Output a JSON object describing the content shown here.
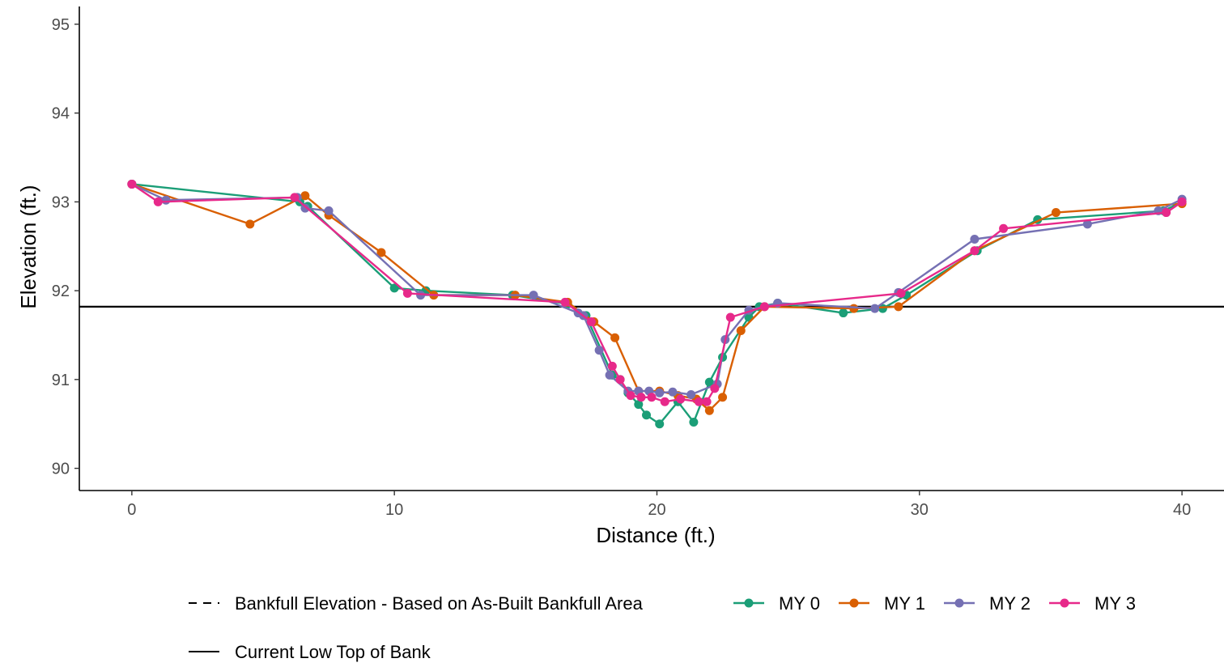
{
  "chart_data": {
    "type": "line",
    "title": "",
    "xlabel": "Distance (ft.)",
    "ylabel": "Elevation (ft.)",
    "xlim": [
      -2,
      41.6
    ],
    "ylim": [
      89.75,
      95.2
    ],
    "xticks": [
      0,
      10,
      20,
      30,
      40
    ],
    "yticks": [
      90,
      91,
      92,
      93,
      94,
      95
    ],
    "grid": false,
    "legend_position": "bottom",
    "reference_lines": [
      {
        "name": "Bankfull Elevation - Based on As-Built Bankfull Area",
        "style": "dashed",
        "y": null
      },
      {
        "name": "Current Low Top of Bank",
        "style": "solid",
        "y": 91.82
      }
    ],
    "series": [
      {
        "name": "MY 0",
        "color": "#1b9e77",
        "points": [
          [
            0,
            93.2
          ],
          [
            6.4,
            93.0
          ],
          [
            6.7,
            92.95
          ],
          [
            10.0,
            92.03
          ],
          [
            11.2,
            92.0
          ],
          [
            14.5,
            91.95
          ],
          [
            16.6,
            91.85
          ],
          [
            17.3,
            91.72
          ],
          [
            18.3,
            91.05
          ],
          [
            18.6,
            91.0
          ],
          [
            18.9,
            90.85
          ],
          [
            19.3,
            90.72
          ],
          [
            19.6,
            90.6
          ],
          [
            20.1,
            90.5
          ],
          [
            20.8,
            90.75
          ],
          [
            21.4,
            90.52
          ],
          [
            22.0,
            90.97
          ],
          [
            22.5,
            91.25
          ],
          [
            23.5,
            91.7
          ],
          [
            23.9,
            91.82
          ],
          [
            24.6,
            91.86
          ],
          [
            27.1,
            91.75
          ],
          [
            28.6,
            91.8
          ],
          [
            29.5,
            91.95
          ],
          [
            32.2,
            92.45
          ],
          [
            34.5,
            92.8
          ],
          [
            39.3,
            92.9
          ],
          [
            40.0,
            93.0
          ]
        ]
      },
      {
        "name": "MY 1",
        "color": "#d95f02",
        "points": [
          [
            0,
            93.2
          ],
          [
            4.5,
            92.75
          ],
          [
            6.6,
            93.07
          ],
          [
            7.5,
            92.85
          ],
          [
            9.5,
            92.43
          ],
          [
            11.5,
            91.95
          ],
          [
            14.6,
            91.95
          ],
          [
            16.6,
            91.87
          ],
          [
            17.6,
            91.65
          ],
          [
            18.4,
            91.47
          ],
          [
            19.3,
            90.87
          ],
          [
            20.1,
            90.87
          ],
          [
            20.8,
            90.82
          ],
          [
            21.5,
            90.78
          ],
          [
            22.0,
            90.65
          ],
          [
            22.5,
            90.8
          ],
          [
            23.2,
            91.55
          ],
          [
            24.1,
            91.82
          ],
          [
            27.5,
            91.8
          ],
          [
            29.2,
            91.82
          ],
          [
            32.1,
            92.45
          ],
          [
            35.2,
            92.88
          ],
          [
            40.0,
            92.98
          ]
        ]
      },
      {
        "name": "MY 2",
        "color": "#7570b3",
        "points": [
          [
            0,
            93.2
          ],
          [
            1.3,
            93.02
          ],
          [
            6.3,
            93.05
          ],
          [
            6.6,
            92.93
          ],
          [
            7.5,
            92.9
          ],
          [
            11.0,
            91.95
          ],
          [
            15.3,
            91.95
          ],
          [
            17.0,
            91.75
          ],
          [
            17.2,
            91.72
          ],
          [
            17.8,
            91.33
          ],
          [
            18.2,
            91.05
          ],
          [
            18.9,
            90.87
          ],
          [
            19.3,
            90.87
          ],
          [
            19.7,
            90.87
          ],
          [
            20.1,
            90.85
          ],
          [
            20.6,
            90.86
          ],
          [
            21.3,
            90.83
          ],
          [
            22.3,
            90.95
          ],
          [
            22.6,
            91.45
          ],
          [
            23.5,
            91.78
          ],
          [
            24.6,
            91.86
          ],
          [
            28.3,
            91.8
          ],
          [
            29.2,
            91.98
          ],
          [
            32.1,
            92.58
          ],
          [
            36.4,
            92.75
          ],
          [
            39.1,
            92.9
          ],
          [
            40.0,
            93.03
          ]
        ]
      },
      {
        "name": "MY 3",
        "color": "#e7298a",
        "points": [
          [
            0,
            93.2
          ],
          [
            1.0,
            93.0
          ],
          [
            6.2,
            93.05
          ],
          [
            10.5,
            91.97
          ],
          [
            16.5,
            91.87
          ],
          [
            17.5,
            91.65
          ],
          [
            18.3,
            91.15
          ],
          [
            18.6,
            91.0
          ],
          [
            19.0,
            90.82
          ],
          [
            19.4,
            90.8
          ],
          [
            19.8,
            90.8
          ],
          [
            20.3,
            90.75
          ],
          [
            20.9,
            90.78
          ],
          [
            21.6,
            90.75
          ],
          [
            21.9,
            90.75
          ],
          [
            22.2,
            90.9
          ],
          [
            22.8,
            91.7
          ],
          [
            24.1,
            91.82
          ],
          [
            29.3,
            91.97
          ],
          [
            32.1,
            92.45
          ],
          [
            33.2,
            92.7
          ],
          [
            39.4,
            92.88
          ],
          [
            40.0,
            93.0
          ]
        ]
      }
    ]
  }
}
